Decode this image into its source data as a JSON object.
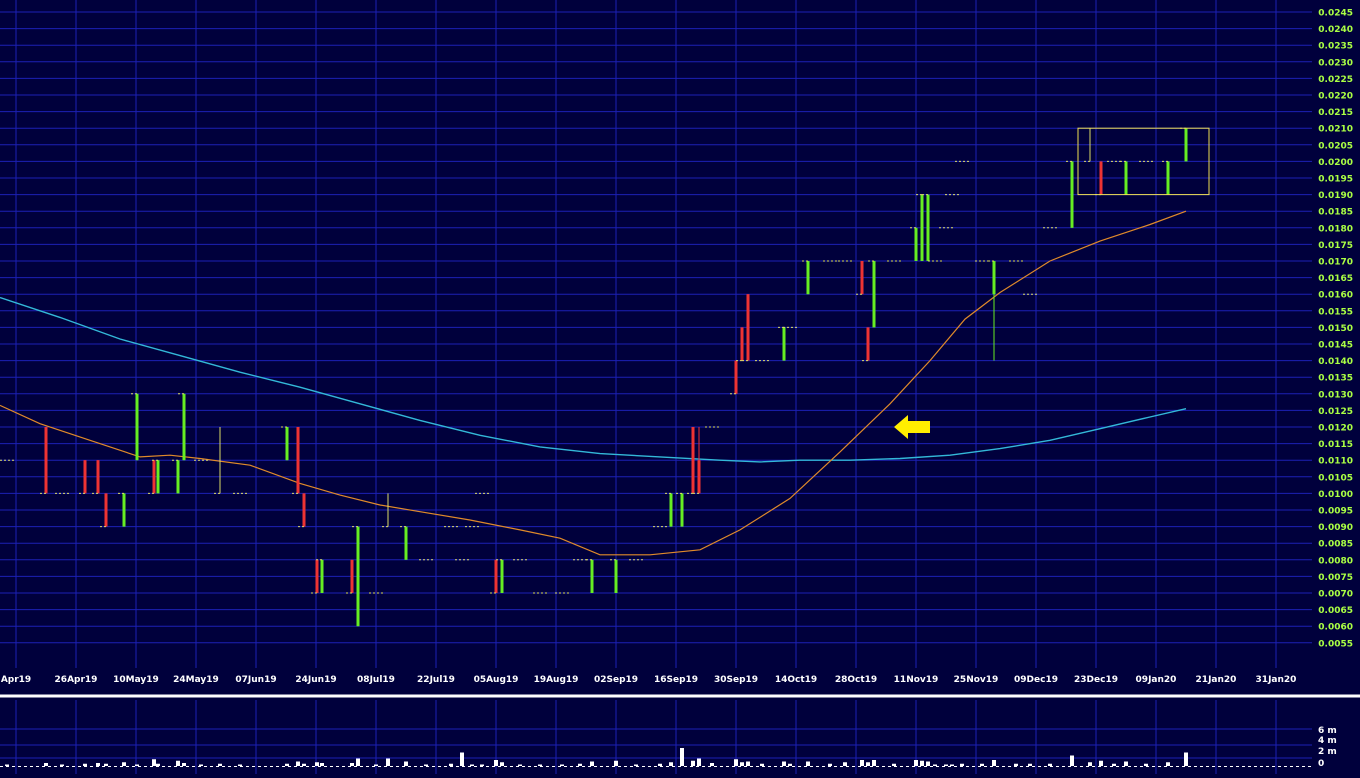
{
  "chart_data": {
    "type": "candlestick",
    "x_tick_labels": [
      "Apr19",
      "26Apr19",
      "10May19",
      "24May19",
      "07Jun19",
      "24Jun19",
      "08Jul19",
      "22Jul19",
      "05Aug19",
      "19Aug19",
      "02Sep19",
      "16Sep19",
      "30Sep19",
      "14Oct19",
      "28Oct19",
      "11Nov19",
      "25Nov19",
      "09Dec19",
      "23Dec19",
      "09Jan20",
      "21Jan20",
      "31Jan20"
    ],
    "y_tick_labels": [
      "0.0245",
      "0.0240",
      "0.0235",
      "0.0230",
      "0.0225",
      "0.0220",
      "0.0215",
      "0.0210",
      "0.0205",
      "0.0200",
      "0.0195",
      "0.0190",
      "0.0185",
      "0.0180",
      "0.0175",
      "0.0170",
      "0.0165",
      "0.0160",
      "0.0155",
      "0.0150",
      "0.0145",
      "0.0140",
      "0.0135",
      "0.0130",
      "0.0125",
      "0.0120",
      "0.0115",
      "0.0110",
      "0.0105",
      "0.0100",
      "0.0095",
      "0.0090",
      "0.0085",
      "0.0080",
      "0.0075",
      "0.0070",
      "0.0065",
      "0.0060",
      "0.0055"
    ],
    "volume_tick_labels": [
      "6 m",
      "4 m",
      "2 m",
      "0"
    ],
    "ylim": [
      0.005,
      0.0248
    ],
    "grid": true,
    "colors": {
      "background": "#00003c",
      "grid": "#1c20b4",
      "up": "#66ee22",
      "down": "#ee3333",
      "flat": "#dddd66",
      "ma_short": "#e08a2a",
      "ma_long": "#33b8d8",
      "annotation_box": "#f0e050",
      "arrow": "#ffee00",
      "axis_text": "#ffffff",
      "price_text": "#aaff44",
      "separator": "#ffffff"
    },
    "bars": [
      {
        "x": 7,
        "o": 0.011,
        "h": 0.011,
        "l": 0.011,
        "c": 0.011,
        "v": 0.05
      },
      {
        "x": 46,
        "o": 0.012,
        "h": 0.012,
        "l": 0.01,
        "c": 0.01,
        "v": 0.4
      },
      {
        "x": 62,
        "o": 0.01,
        "h": 0.01,
        "l": 0.01,
        "c": 0.01,
        "v": 0.1
      },
      {
        "x": 85,
        "o": 0.011,
        "h": 0.011,
        "l": 0.01,
        "c": 0.01,
        "v": 0.3
      },
      {
        "x": 98,
        "o": 0.011,
        "h": 0.011,
        "l": 0.01,
        "c": 0.01,
        "v": 0.4
      },
      {
        "x": 106,
        "o": 0.01,
        "h": 0.01,
        "l": 0.009,
        "c": 0.009,
        "v": 0.3
      },
      {
        "x": 124,
        "o": 0.009,
        "h": 0.01,
        "l": 0.009,
        "c": 0.01,
        "v": 0.5
      },
      {
        "x": 137,
        "o": 0.011,
        "h": 0.013,
        "l": 0.011,
        "c": 0.013,
        "v": 0.2
      },
      {
        "x": 154,
        "o": 0.011,
        "h": 0.011,
        "l": 0.01,
        "c": 0.01,
        "v": 0.9
      },
      {
        "x": 158,
        "o": 0.01,
        "h": 0.011,
        "l": 0.01,
        "c": 0.011,
        "v": 0.3
      },
      {
        "x": 178,
        "o": 0.01,
        "h": 0.011,
        "l": 0.01,
        "c": 0.011,
        "v": 0.7
      },
      {
        "x": 184,
        "o": 0.011,
        "h": 0.013,
        "l": 0.011,
        "c": 0.013,
        "v": 0.4
      },
      {
        "x": 201,
        "o": 0.011,
        "h": 0.011,
        "l": 0.011,
        "c": 0.011,
        "v": 0.1
      },
      {
        "x": 220,
        "o": 0.01,
        "h": 0.012,
        "l": 0.01,
        "c": 0.01,
        "v": 0.3
      },
      {
        "x": 240,
        "o": 0.01,
        "h": 0.01,
        "l": 0.01,
        "c": 0.01,
        "v": 0.2
      },
      {
        "x": 287,
        "o": 0.011,
        "h": 0.012,
        "l": 0.011,
        "c": 0.012,
        "v": 0.3
      },
      {
        "x": 298,
        "o": 0.012,
        "h": 0.012,
        "l": 0.01,
        "c": 0.01,
        "v": 0.6
      },
      {
        "x": 304,
        "o": 0.01,
        "h": 0.01,
        "l": 0.009,
        "c": 0.009,
        "v": 0.3
      },
      {
        "x": 317,
        "o": 0.008,
        "h": 0.008,
        "l": 0.007,
        "c": 0.007,
        "v": 0.5
      },
      {
        "x": 322,
        "o": 0.007,
        "h": 0.008,
        "l": 0.007,
        "c": 0.008,
        "v": 0.4
      },
      {
        "x": 352,
        "o": 0.008,
        "h": 0.008,
        "l": 0.007,
        "c": 0.007,
        "v": 0.4
      },
      {
        "x": 358,
        "o": 0.006,
        "h": 0.009,
        "l": 0.006,
        "c": 0.009,
        "v": 1.0
      },
      {
        "x": 376,
        "o": 0.007,
        "h": 0.007,
        "l": 0.007,
        "c": 0.007,
        "v": 0.1
      },
      {
        "x": 388,
        "o": 0.009,
        "h": 0.01,
        "l": 0.009,
        "c": 0.009,
        "v": 1.0
      },
      {
        "x": 406,
        "o": 0.008,
        "h": 0.009,
        "l": 0.008,
        "c": 0.009,
        "v": 0.6
      },
      {
        "x": 426,
        "o": 0.008,
        "h": 0.008,
        "l": 0.008,
        "c": 0.008,
        "v": 0.2
      },
      {
        "x": 451,
        "o": 0.009,
        "h": 0.009,
        "l": 0.009,
        "c": 0.009,
        "v": 0.3
      },
      {
        "x": 462,
        "o": 0.008,
        "h": 0.008,
        "l": 0.008,
        "c": 0.008,
        "v": 1.8
      },
      {
        "x": 472,
        "o": 0.009,
        "h": 0.009,
        "l": 0.009,
        "c": 0.009,
        "v": 0.2
      },
      {
        "x": 482,
        "o": 0.01,
        "h": 0.01,
        "l": 0.01,
        "c": 0.01,
        "v": 0.2
      },
      {
        "x": 496,
        "o": 0.008,
        "h": 0.008,
        "l": 0.007,
        "c": 0.007,
        "v": 0.8
      },
      {
        "x": 502,
        "o": 0.007,
        "h": 0.008,
        "l": 0.007,
        "c": 0.008,
        "v": 0.5
      },
      {
        "x": 520,
        "o": 0.008,
        "h": 0.008,
        "l": 0.008,
        "c": 0.008,
        "v": 0.2
      },
      {
        "x": 540,
        "o": 0.007,
        "h": 0.007,
        "l": 0.007,
        "c": 0.007,
        "v": 0.2
      },
      {
        "x": 562,
        "o": 0.007,
        "h": 0.007,
        "l": 0.007,
        "c": 0.007,
        "v": 0.2
      },
      {
        "x": 580,
        "o": 0.008,
        "h": 0.008,
        "l": 0.008,
        "c": 0.008,
        "v": 0.3
      },
      {
        "x": 592,
        "o": 0.007,
        "h": 0.008,
        "l": 0.007,
        "c": 0.008,
        "v": 0.6
      },
      {
        "x": 616,
        "o": 0.007,
        "h": 0.008,
        "l": 0.007,
        "c": 0.008,
        "v": 0.7
      },
      {
        "x": 636,
        "o": 0.008,
        "h": 0.008,
        "l": 0.008,
        "c": 0.008,
        "v": 0.2
      },
      {
        "x": 660,
        "o": 0.009,
        "h": 0.009,
        "l": 0.009,
        "c": 0.009,
        "v": 0.3
      },
      {
        "x": 671,
        "o": 0.009,
        "h": 0.01,
        "l": 0.009,
        "c": 0.01,
        "v": 0.5
      },
      {
        "x": 682,
        "o": 0.009,
        "h": 0.01,
        "l": 0.009,
        "c": 0.01,
        "v": 2.4
      },
      {
        "x": 693,
        "o": 0.012,
        "h": 0.012,
        "l": 0.01,
        "c": 0.01,
        "v": 0.7
      },
      {
        "x": 699,
        "o": 0.011,
        "h": 0.012,
        "l": 0.01,
        "c": 0.01,
        "v": 1.0
      },
      {
        "x": 712,
        "o": 0.012,
        "h": 0.012,
        "l": 0.012,
        "c": 0.012,
        "v": 0.4
      },
      {
        "x": 736,
        "o": 0.014,
        "h": 0.014,
        "l": 0.013,
        "c": 0.013,
        "v": 0.9
      },
      {
        "x": 742,
        "o": 0.015,
        "h": 0.015,
        "l": 0.014,
        "c": 0.014,
        "v": 0.5
      },
      {
        "x": 748,
        "o": 0.016,
        "h": 0.016,
        "l": 0.014,
        "c": 0.014,
        "v": 0.6
      },
      {
        "x": 762,
        "o": 0.014,
        "h": 0.014,
        "l": 0.014,
        "c": 0.014,
        "v": 0.3
      },
      {
        "x": 784,
        "o": 0.014,
        "h": 0.015,
        "l": 0.014,
        "c": 0.015,
        "v": 0.6
      },
      {
        "x": 790,
        "o": 0.015,
        "h": 0.015,
        "l": 0.015,
        "c": 0.015,
        "v": 0.3
      },
      {
        "x": 808,
        "o": 0.016,
        "h": 0.017,
        "l": 0.016,
        "c": 0.017,
        "v": 0.6
      },
      {
        "x": 830,
        "o": 0.017,
        "h": 0.017,
        "l": 0.017,
        "c": 0.017,
        "v": 0.3
      },
      {
        "x": 845,
        "o": 0.017,
        "h": 0.017,
        "l": 0.017,
        "c": 0.017,
        "v": 0.5
      },
      {
        "x": 862,
        "o": 0.017,
        "h": 0.017,
        "l": 0.016,
        "c": 0.016,
        "v": 0.8
      },
      {
        "x": 868,
        "o": 0.015,
        "h": 0.015,
        "l": 0.014,
        "c": 0.014,
        "v": 0.5
      },
      {
        "x": 874,
        "o": 0.015,
        "h": 0.017,
        "l": 0.015,
        "c": 0.017,
        "v": 0.8
      },
      {
        "x": 894,
        "o": 0.017,
        "h": 0.017,
        "l": 0.017,
        "c": 0.017,
        "v": 0.3
      },
      {
        "x": 916,
        "o": 0.017,
        "h": 0.018,
        "l": 0.017,
        "c": 0.018,
        "v": 0.8
      },
      {
        "x": 922,
        "o": 0.017,
        "h": 0.019,
        "l": 0.017,
        "c": 0.019,
        "v": 0.7
      },
      {
        "x": 928,
        "o": 0.017,
        "h": 0.019,
        "l": 0.017,
        "c": 0.019,
        "v": 0.6
      },
      {
        "x": 935,
        "o": 0.017,
        "h": 0.017,
        "l": 0.017,
        "c": 0.017,
        "v": 0.2
      },
      {
        "x": 946,
        "o": 0.018,
        "h": 0.018,
        "l": 0.018,
        "c": 0.018,
        "v": 0.2
      },
      {
        "x": 952,
        "o": 0.019,
        "h": 0.019,
        "l": 0.019,
        "c": 0.019,
        "v": 0.2
      },
      {
        "x": 962,
        "o": 0.02,
        "h": 0.02,
        "l": 0.02,
        "c": 0.02,
        "v": 0.3
      },
      {
        "x": 982,
        "o": 0.017,
        "h": 0.017,
        "l": 0.017,
        "c": 0.017,
        "v": 0.3
      },
      {
        "x": 994,
        "o": 0.016,
        "h": 0.017,
        "l": 0.014,
        "c": 0.017,
        "v": 0.8
      },
      {
        "x": 1016,
        "o": 0.017,
        "h": 0.017,
        "l": 0.017,
        "c": 0.017,
        "v": 0.3
      },
      {
        "x": 1030,
        "o": 0.016,
        "h": 0.016,
        "l": 0.016,
        "c": 0.016,
        "v": 0.3
      },
      {
        "x": 1050,
        "o": 0.018,
        "h": 0.018,
        "l": 0.018,
        "c": 0.018,
        "v": 0.3
      },
      {
        "x": 1072,
        "o": 0.018,
        "h": 0.02,
        "l": 0.018,
        "c": 0.02,
        "v": 1.4
      },
      {
        "x": 1090,
        "o": 0.02,
        "h": 0.021,
        "l": 0.02,
        "c": 0.02,
        "v": 0.5
      },
      {
        "x": 1101,
        "o": 0.02,
        "h": 0.02,
        "l": 0.019,
        "c": 0.019,
        "v": 0.7
      },
      {
        "x": 1114,
        "o": 0.02,
        "h": 0.02,
        "l": 0.02,
        "c": 0.02,
        "v": 0.3
      },
      {
        "x": 1126,
        "o": 0.019,
        "h": 0.02,
        "l": 0.019,
        "c": 0.02,
        "v": 0.6
      },
      {
        "x": 1146,
        "o": 0.02,
        "h": 0.02,
        "l": 0.02,
        "c": 0.02,
        "v": 0.3
      },
      {
        "x": 1168,
        "o": 0.019,
        "h": 0.02,
        "l": 0.019,
        "c": 0.02,
        "v": 0.5
      },
      {
        "x": 1186,
        "o": 0.02,
        "h": 0.021,
        "l": 0.02,
        "c": 0.021,
        "v": 1.8
      }
    ],
    "ma_short": [
      [
        0,
        0.01265
      ],
      [
        40,
        0.0121
      ],
      [
        90,
        0.0116
      ],
      [
        140,
        0.0111
      ],
      [
        170,
        0.01115
      ],
      [
        200,
        0.01105
      ],
      [
        250,
        0.01085
      ],
      [
        300,
        0.0103
      ],
      [
        340,
        0.00995
      ],
      [
        380,
        0.00965
      ],
      [
        420,
        0.00945
      ],
      [
        470,
        0.0092
      ],
      [
        520,
        0.0089
      ],
      [
        560,
        0.00865
      ],
      [
        600,
        0.00815
      ],
      [
        650,
        0.00815
      ],
      [
        700,
        0.0083
      ],
      [
        740,
        0.0089
      ],
      [
        790,
        0.00985
      ],
      [
        840,
        0.01125
      ],
      [
        890,
        0.0127
      ],
      [
        930,
        0.014
      ],
      [
        965,
        0.01525
      ],
      [
        1000,
        0.01605
      ],
      [
        1050,
        0.017
      ],
      [
        1100,
        0.0176
      ],
      [
        1150,
        0.0181
      ],
      [
        1186,
        0.0185
      ]
    ],
    "ma_long": [
      [
        0,
        0.0159
      ],
      [
        60,
        0.0153
      ],
      [
        120,
        0.01465
      ],
      [
        180,
        0.01415
      ],
      [
        240,
        0.01365
      ],
      [
        300,
        0.0132
      ],
      [
        360,
        0.0127
      ],
      [
        420,
        0.0122
      ],
      [
        480,
        0.01175
      ],
      [
        540,
        0.0114
      ],
      [
        600,
        0.0112
      ],
      [
        660,
        0.0111
      ],
      [
        720,
        0.011
      ],
      [
        760,
        0.01095
      ],
      [
        800,
        0.011
      ],
      [
        850,
        0.011
      ],
      [
        900,
        0.01105
      ],
      [
        950,
        0.01115
      ],
      [
        1000,
        0.01135
      ],
      [
        1050,
        0.0116
      ],
      [
        1100,
        0.01195
      ],
      [
        1150,
        0.0123
      ],
      [
        1186,
        0.01255
      ]
    ],
    "annotation_box": {
      "x0": 1078,
      "x1": 1209,
      "y0": 0.019,
      "y1": 0.021
    },
    "arrow": {
      "x": 930,
      "y": 0.012,
      "direction": "left"
    }
  }
}
